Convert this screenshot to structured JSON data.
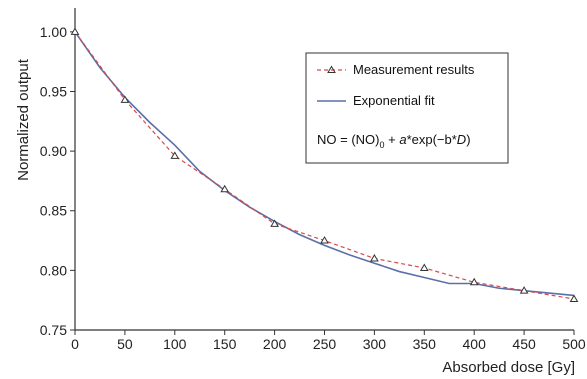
{
  "chart_data": {
    "type": "line",
    "title": "",
    "xlabel": "Absorbed dose [Gy]",
    "ylabel": "Normalized output",
    "xlim": [
      0,
      500
    ],
    "ylim": [
      0.75,
      1.02
    ],
    "xticks": [
      0,
      50,
      100,
      150,
      200,
      250,
      300,
      350,
      400,
      450,
      500
    ],
    "yticks": [
      0.75,
      0.8,
      0.85,
      0.9,
      0.95,
      1.0
    ],
    "xtick_labels": [
      "0",
      "50",
      "100",
      "150",
      "200",
      "250",
      "300",
      "350",
      "400",
      "450",
      "500"
    ],
    "ytick_labels": [
      "0.75",
      "0.80",
      "0.85",
      "0.90",
      "0.95",
      "1.00"
    ],
    "grid": false,
    "legend_position": "top-right",
    "series": [
      {
        "name": "Measurement results",
        "style": "dashed-with-triangle-markers",
        "color": "#d94848",
        "x": [
          0,
          50,
          100,
          150,
          200,
          250,
          300,
          350,
          400,
          450,
          500
        ],
        "y": [
          1.0,
          0.943,
          0.896,
          0.868,
          0.839,
          0.825,
          0.81,
          0.802,
          0.79,
          0.783,
          0.776
        ]
      },
      {
        "name": "Exponential fit",
        "style": "solid",
        "color": "#5b6fa8",
        "x": [
          0,
          25,
          50,
          75,
          100,
          125,
          150,
          175,
          200,
          225,
          250,
          275,
          300,
          325,
          350,
          375,
          400,
          425,
          450,
          475,
          500
        ],
        "y": [
          1.0,
          0.97,
          0.945,
          0.924,
          0.905,
          0.883,
          0.867,
          0.853,
          0.841,
          0.83,
          0.821,
          0.813,
          0.806,
          0.799,
          0.794,
          0.789,
          0.789,
          0.785,
          0.783,
          0.781,
          0.779
        ]
      }
    ],
    "legend": {
      "equation_parts": {
        "lhs": "NO = (NO)",
        "sub": "0",
        "plus": " + ",
        "a": "a",
        "mid": "*exp(−b*",
        "d": "D",
        "end": ")"
      }
    }
  }
}
